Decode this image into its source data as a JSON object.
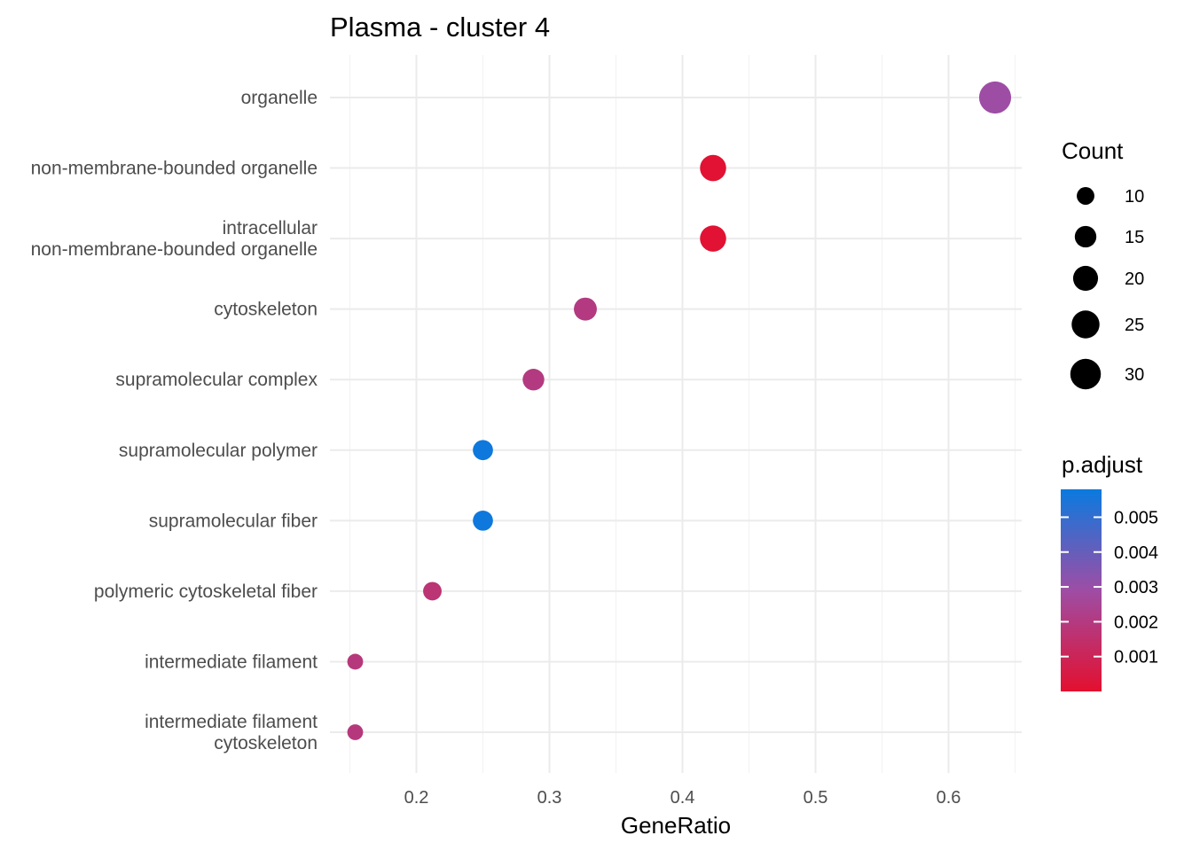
{
  "chart_data": {
    "type": "scatter",
    "title": "Plasma - cluster 4",
    "xlabel": "GeneRatio",
    "ylabel": "",
    "xlim": [
      0.135,
      0.655
    ],
    "xticks": [
      0.2,
      0.3,
      0.4,
      0.5,
      0.6
    ],
    "xtick_labels": [
      "0.2",
      "0.3",
      "0.4",
      "0.5",
      "0.6"
    ],
    "grid": true,
    "categories": [
      [
        "organelle"
      ],
      [
        "non-membrane-bounded organelle"
      ],
      [
        "intracellular",
        "non-membrane-bounded organelle"
      ],
      [
        "cytoskeleton"
      ],
      [
        "supramolecular complex"
      ],
      [
        "supramolecular polymer"
      ],
      [
        "supramolecular fiber"
      ],
      [
        "polymeric cytoskeletal fiber"
      ],
      [
        "intermediate filament"
      ],
      [
        "intermediate filament",
        "cytoskeleton"
      ]
    ],
    "points": [
      {
        "x": 0.635,
        "count": 33,
        "p_adjust": 0.0029
      },
      {
        "x": 0.423,
        "count": 22,
        "p_adjust": 0.0001
      },
      {
        "x": 0.423,
        "count": 22,
        "p_adjust": 0.0001
      },
      {
        "x": 0.327,
        "count": 17,
        "p_adjust": 0.002
      },
      {
        "x": 0.288,
        "count": 15,
        "p_adjust": 0.002
      },
      {
        "x": 0.25,
        "count": 13,
        "p_adjust": 0.0057
      },
      {
        "x": 0.25,
        "count": 13,
        "p_adjust": 0.0057
      },
      {
        "x": 0.212,
        "count": 11,
        "p_adjust": 0.0017
      },
      {
        "x": 0.154,
        "count": 8,
        "p_adjust": 0.0019
      },
      {
        "x": 0.154,
        "count": 8,
        "p_adjust": 0.0019
      }
    ],
    "size_legend": {
      "title": "Count",
      "values": [
        10,
        15,
        20,
        25,
        30
      ],
      "labels": [
        "10",
        "15",
        "20",
        "25",
        "30"
      ]
    },
    "color_legend": {
      "title": "p.adjust",
      "range": [
        0.0,
        0.0058
      ],
      "ticks": [
        0.001,
        0.002,
        0.003,
        0.004,
        0.005
      ],
      "labels": [
        "0.001",
        "0.002",
        "0.003",
        "0.004",
        "0.005"
      ],
      "low_color": "#E3102F",
      "mid_color": "#9E4DA5",
      "high_color": "#0A7ADF"
    },
    "legend_position": "right"
  }
}
